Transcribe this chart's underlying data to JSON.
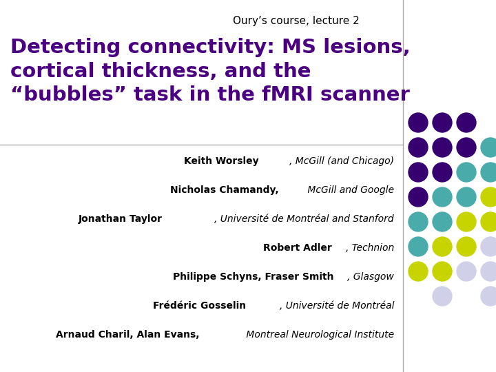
{
  "subtitle": "Oury’s course, lecture 2",
  "title_line1": "Detecting connectivity: MS lesions,",
  "title_line2": "cortical thickness, and the",
  "title_line3": "“bubbles” task in the fMRI scanner",
  "title_color": "#4B0082",
  "subtitle_color": "#000000",
  "bg_color": "#FFFFFF",
  "vertical_line_color": "#AAAAAA",
  "horizontal_line_color": "#AAAAAA",
  "authors": [
    {
      "bold": "Keith Worsley",
      "italic": ", McGill (and Chicago)"
    },
    {
      "bold": "Nicholas Chamandy,",
      "italic": " McGill and Google"
    },
    {
      "bold": "Jonathan Taylor",
      "italic": ", Université de Montréal and Stanford"
    },
    {
      "bold": "Robert Adler",
      "italic": ", Technion"
    },
    {
      "bold": "Philippe Schyns, Fraser Smith",
      "italic": ", Glasgow"
    },
    {
      "bold": "Frédéric Gosselin",
      "italic": ", Université de Montréal"
    },
    {
      "bold": "Arnaud Charil, Alan Evans,",
      "italic": " Montreal Neurological Institute"
    }
  ],
  "dot_grid": [
    [
      "#360070",
      "#360070",
      "#360070",
      null,
      null
    ],
    [
      "#360070",
      "#360070",
      "#360070",
      "#4aabab",
      null
    ],
    [
      "#360070",
      "#360070",
      "#4aabab",
      "#4aabab",
      "#c8d400"
    ],
    [
      "#360070",
      "#4aabab",
      "#4aabab",
      "#c8d400",
      null
    ],
    [
      "#4aabab",
      "#4aabab",
      "#c8d400",
      "#c8d400",
      "#d0d0e8"
    ],
    [
      "#4aabab",
      "#c8d400",
      "#c8d400",
      "#d0d0e8",
      null
    ],
    [
      "#c8d400",
      "#c8d400",
      "#d0d0e8",
      "#d0d0e8",
      null
    ],
    [
      null,
      "#d0d0e8",
      null,
      "#d0d0e8",
      null
    ]
  ]
}
